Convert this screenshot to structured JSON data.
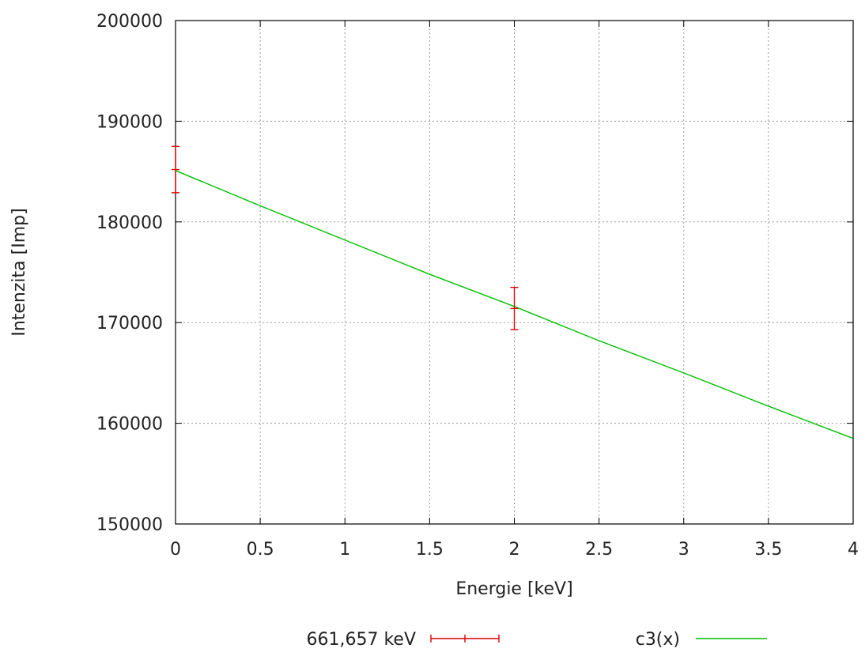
{
  "chart_data": {
    "type": "scatter",
    "title": "",
    "xlabel": "Energie [keV]",
    "ylabel": "Intenzita [Imp]",
    "xlim": [
      0,
      4
    ],
    "ylim": [
      150000,
      200000
    ],
    "x_ticks": [
      0,
      0.5,
      1,
      1.5,
      2,
      2.5,
      3,
      3.5,
      4
    ],
    "x_tick_labels": [
      "0",
      "0.5",
      "1",
      "1.5",
      "2",
      "2.5",
      "3",
      "3.5",
      "4"
    ],
    "y_ticks": [
      150000,
      160000,
      170000,
      180000,
      190000,
      200000
    ],
    "y_tick_labels": [
      "150000",
      "160000",
      "170000",
      "180000",
      "190000",
      "200000"
    ],
    "grid": true,
    "legend_position": "bottom",
    "series": [
      {
        "name": "661,657 keV",
        "kind": "errorbars",
        "color": "#e00000",
        "points": [
          {
            "x": 0,
            "y": 185200,
            "yerr": 2300
          },
          {
            "x": 2,
            "y": 171400,
            "yerr": 2100
          }
        ]
      },
      {
        "name": "c3(x)",
        "kind": "line",
        "color": "#00c000",
        "x": [
          0,
          0.5,
          1,
          1.5,
          2,
          2.5,
          3,
          3.5,
          4
        ],
        "y": [
          185100,
          181600,
          178200,
          174800,
          171600,
          168200,
          165000,
          161700,
          158500
        ]
      }
    ]
  }
}
